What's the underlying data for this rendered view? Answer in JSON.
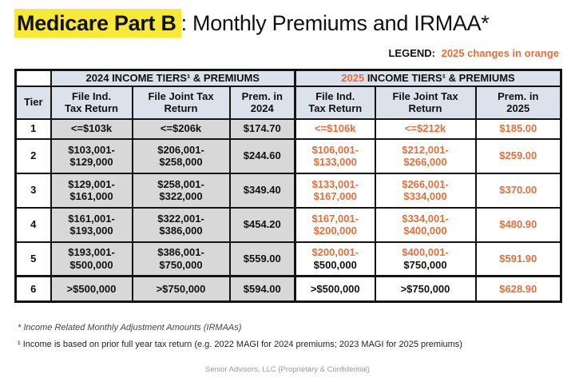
{
  "title": {
    "highlight": "Medicare Part B",
    "rest": ": Monthly Premiums and IRMAA*"
  },
  "legend": {
    "label": "LEGEND:",
    "text": "2025 changes in orange"
  },
  "colors": {
    "accent_orange": "#E0703C",
    "header_bg": "#DBE2EB",
    "gray_cell_bg": "#D8D8D8",
    "highlight_yellow": "#F8E838",
    "footer_gray": "#9B9B9B"
  },
  "table": {
    "group_2024": {
      "year": "2024",
      "rest": " INCOME TIERS¹ & PREMIUMS"
    },
    "group_2025": {
      "year": "2025",
      "rest": " INCOME TIERS¹ & PREMIUMS"
    },
    "columns": {
      "tier": "Tier",
      "ind": "File Ind.\nTax Return",
      "joint": "File Joint Tax\nReturn",
      "prem_2024": "Prem. in\n2024",
      "prem_2025": "Prem. in\n2025"
    },
    "rows": [
      {
        "tier": "1",
        "ind_2024": [
          {
            "text": "<=$103k",
            "orange": false
          }
        ],
        "joint_2024": [
          {
            "text": "<=$206k",
            "orange": false
          }
        ],
        "prem_2024": [
          {
            "text": "$174.70",
            "orange": false
          }
        ],
        "ind_2025": [
          {
            "text": "<=$106k",
            "orange": true
          }
        ],
        "joint_2025": [
          {
            "text": "<=$212k",
            "orange": true
          }
        ],
        "prem_2025": [
          {
            "text": "$185.00",
            "orange": true
          }
        ]
      },
      {
        "tier": "2",
        "ind_2024": [
          {
            "text": "$103,001-",
            "orange": false
          },
          {
            "text": "$129,000",
            "orange": false
          }
        ],
        "joint_2024": [
          {
            "text": "$206,001-",
            "orange": false
          },
          {
            "text": "$258,000",
            "orange": false
          }
        ],
        "prem_2024": [
          {
            "text": "$244.60",
            "orange": false
          }
        ],
        "ind_2025": [
          {
            "text": "$106,001-",
            "orange": true
          },
          {
            "text": "$133,000",
            "orange": true
          }
        ],
        "joint_2025": [
          {
            "text": "$212,001-",
            "orange": true
          },
          {
            "text": "$266,000",
            "orange": true
          }
        ],
        "prem_2025": [
          {
            "text": "$259.00",
            "orange": true
          }
        ]
      },
      {
        "tier": "3",
        "ind_2024": [
          {
            "text": "$129,001-",
            "orange": false
          },
          {
            "text": "$161,000",
            "orange": false
          }
        ],
        "joint_2024": [
          {
            "text": "$258,001-",
            "orange": false
          },
          {
            "text": "$322,000",
            "orange": false
          }
        ],
        "prem_2024": [
          {
            "text": "$349.40",
            "orange": false
          }
        ],
        "ind_2025": [
          {
            "text": "$133,001-",
            "orange": true
          },
          {
            "text": "$167,000",
            "orange": true
          }
        ],
        "joint_2025": [
          {
            "text": "$266,001-",
            "orange": true
          },
          {
            "text": "$334,000",
            "orange": true
          }
        ],
        "prem_2025": [
          {
            "text": "$370.00",
            "orange": true
          }
        ]
      },
      {
        "tier": "4",
        "ind_2024": [
          {
            "text": "$161,001-",
            "orange": false
          },
          {
            "text": "$193,000",
            "orange": false
          }
        ],
        "joint_2024": [
          {
            "text": "$322,001-",
            "orange": false
          },
          {
            "text": "$386,000",
            "orange": false
          }
        ],
        "prem_2024": [
          {
            "text": "$454.20",
            "orange": false
          }
        ],
        "ind_2025": [
          {
            "text": "$167,001-",
            "orange": true
          },
          {
            "text": "$200,000",
            "orange": true
          }
        ],
        "joint_2025": [
          {
            "text": "$334,001-",
            "orange": true
          },
          {
            "text": "$400,000",
            "orange": true
          }
        ],
        "prem_2025": [
          {
            "text": "$480.90",
            "orange": true
          }
        ]
      },
      {
        "tier": "5",
        "ind_2024": [
          {
            "text": "$193,001-",
            "orange": false
          },
          {
            "text": "$500,000",
            "orange": false
          }
        ],
        "joint_2024": [
          {
            "text": "$386,001-",
            "orange": false
          },
          {
            "text": "$750,000",
            "orange": false
          }
        ],
        "prem_2024": [
          {
            "text": "$559.00",
            "orange": false
          }
        ],
        "ind_2025": [
          {
            "text": "$200,001-",
            "orange": true
          },
          {
            "text": "$500,000",
            "orange": false
          }
        ],
        "joint_2025": [
          {
            "text": "$400,001-",
            "orange": true
          },
          {
            "text": "$750,000",
            "orange": false
          }
        ],
        "prem_2025": [
          {
            "text": "$591.90",
            "orange": true
          }
        ]
      },
      {
        "tier": "6",
        "ind_2024": [
          {
            "text": ">$500,000",
            "orange": false
          }
        ],
        "joint_2024": [
          {
            "text": ">$750,000",
            "orange": false
          }
        ],
        "prem_2024": [
          {
            "text": "$594.00",
            "orange": false
          }
        ],
        "ind_2025": [
          {
            "text": ">$500,000",
            "orange": false
          }
        ],
        "joint_2025": [
          {
            "text": ">$750,000",
            "orange": false
          }
        ],
        "prem_2025": [
          {
            "text": "$628.90",
            "orange": true
          }
        ]
      }
    ]
  },
  "footnotes": {
    "irmaa": "* Income Related Monthly Adjustment Amounts (IRMAAs)",
    "income_basis": "¹ Income is based on prior full year tax return (e.g. 2022 MAGI for 2024 premiums; 2023 MAGI for 2025 premiums)"
  },
  "footer": {
    "text": "Senior Advisors, LLC (Proprietary & Confidential)"
  }
}
